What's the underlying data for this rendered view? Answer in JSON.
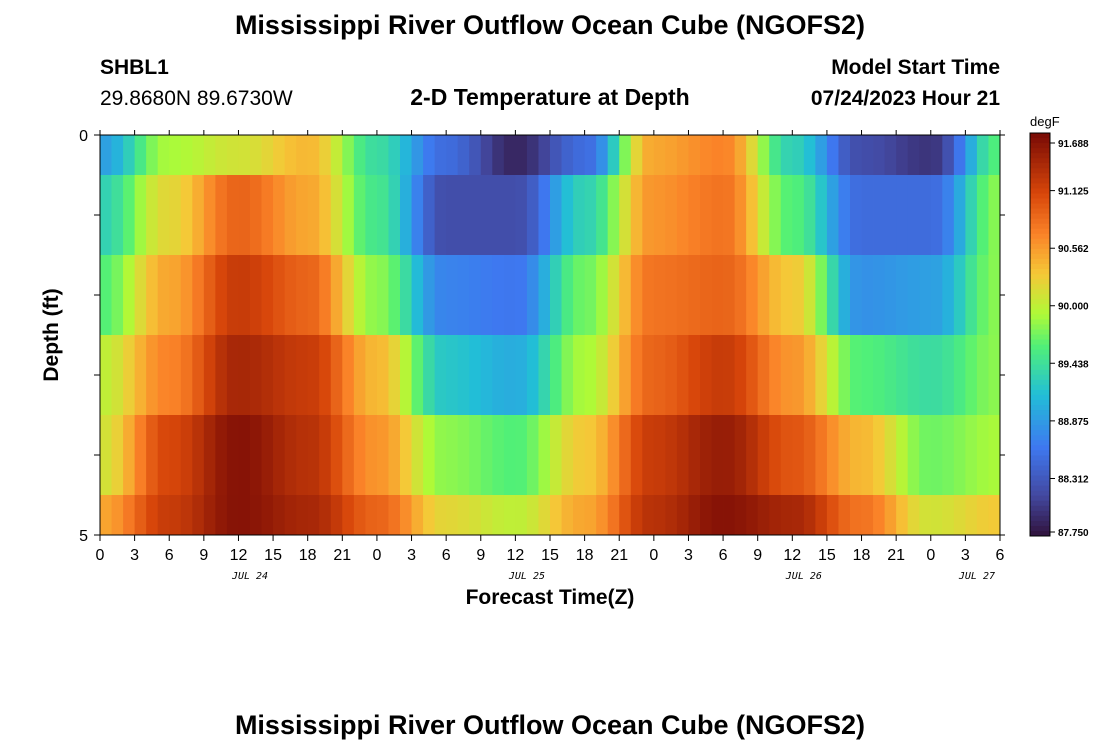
{
  "page": {
    "title": "Mississippi River Outflow Ocean Cube (NGOFS2)",
    "title_repeat": "Mississippi River Outflow Ocean Cube (NGOFS2)",
    "station_id": "SHBL1",
    "station_coords": "29.8680N  89.6730W",
    "plot_subtitle": "2-D Temperature at Depth",
    "model_start_label": "Model Start Time",
    "model_start_value": "07/24/2023 Hour 21"
  },
  "chart_data": {
    "type": "heatmap",
    "title": "2-D Temperature at Depth",
    "xlabel": "Forecast Time(Z)",
    "ylabel": "Depth (ft)",
    "x_tick_labels": [
      "0",
      "3",
      "6",
      "9",
      "12",
      "15",
      "18",
      "21",
      "0",
      "3",
      "6",
      "9",
      "12",
      "15",
      "18",
      "21",
      "0",
      "3",
      "6",
      "9",
      "12",
      "15",
      "18",
      "21",
      "0",
      "3",
      "6"
    ],
    "x_range_hours": [
      0,
      78
    ],
    "date_labels": [
      {
        "label": "JUL 24",
        "hour": 13
      },
      {
        "label": "JUL 25",
        "hour": 37
      },
      {
        "label": "JUL 26",
        "hour": 61
      },
      {
        "label": "JUL 27",
        "hour": 76
      }
    ],
    "y_tick_labels": [
      "0",
      "5"
    ],
    "y_range": [
      0,
      5
    ],
    "colorbar": {
      "unit": "degF",
      "ticks": [
        "91.688",
        "91.125",
        "90.562",
        "90.000",
        "89.438",
        "88.875",
        "88.312",
        "87.750"
      ],
      "min": 87.75,
      "max": 91.688
    },
    "depth_layers": [
      0.5,
      1.5,
      2.5,
      3.5,
      4.5,
      5.0
    ],
    "row_anchor_hours": [
      0,
      6,
      12,
      18,
      24,
      30,
      36,
      42,
      48,
      54,
      60,
      66,
      72,
      78
    ],
    "rows": [
      {
        "depth": 0.5,
        "anchors": [
          88.9,
          89.9,
          90.1,
          90.4,
          89.4,
          88.5,
          87.9,
          88.5,
          90.5,
          90.7,
          89.3,
          88.2,
          88.0,
          89.6
        ]
      },
      {
        "depth": 1.5,
        "anchors": [
          89.3,
          90.2,
          90.9,
          90.5,
          89.5,
          88.2,
          88.2,
          89.3,
          90.6,
          90.8,
          89.6,
          88.5,
          88.5,
          89.8
        ]
      },
      {
        "depth": 2.5,
        "anchors": [
          89.6,
          90.5,
          91.2,
          90.9,
          89.8,
          88.7,
          88.6,
          89.7,
          90.8,
          90.9,
          90.3,
          88.8,
          88.9,
          89.8
        ]
      },
      {
        "depth": 3.5,
        "anchors": [
          90.0,
          90.7,
          91.4,
          91.2,
          90.4,
          89.2,
          89.0,
          89.9,
          90.9,
          91.2,
          90.6,
          89.6,
          89.4,
          89.8
        ]
      },
      {
        "depth": 4.5,
        "anchors": [
          90.1,
          91.1,
          91.6,
          91.3,
          90.6,
          89.8,
          89.6,
          90.3,
          91.2,
          91.5,
          91.0,
          90.4,
          89.7,
          89.9
        ]
      },
      {
        "depth": 5.0,
        "anchors": [
          90.5,
          91.2,
          91.6,
          91.4,
          90.9,
          90.2,
          90.0,
          90.5,
          91.3,
          91.6,
          91.4,
          90.8,
          90.1,
          90.3
        ]
      }
    ]
  }
}
